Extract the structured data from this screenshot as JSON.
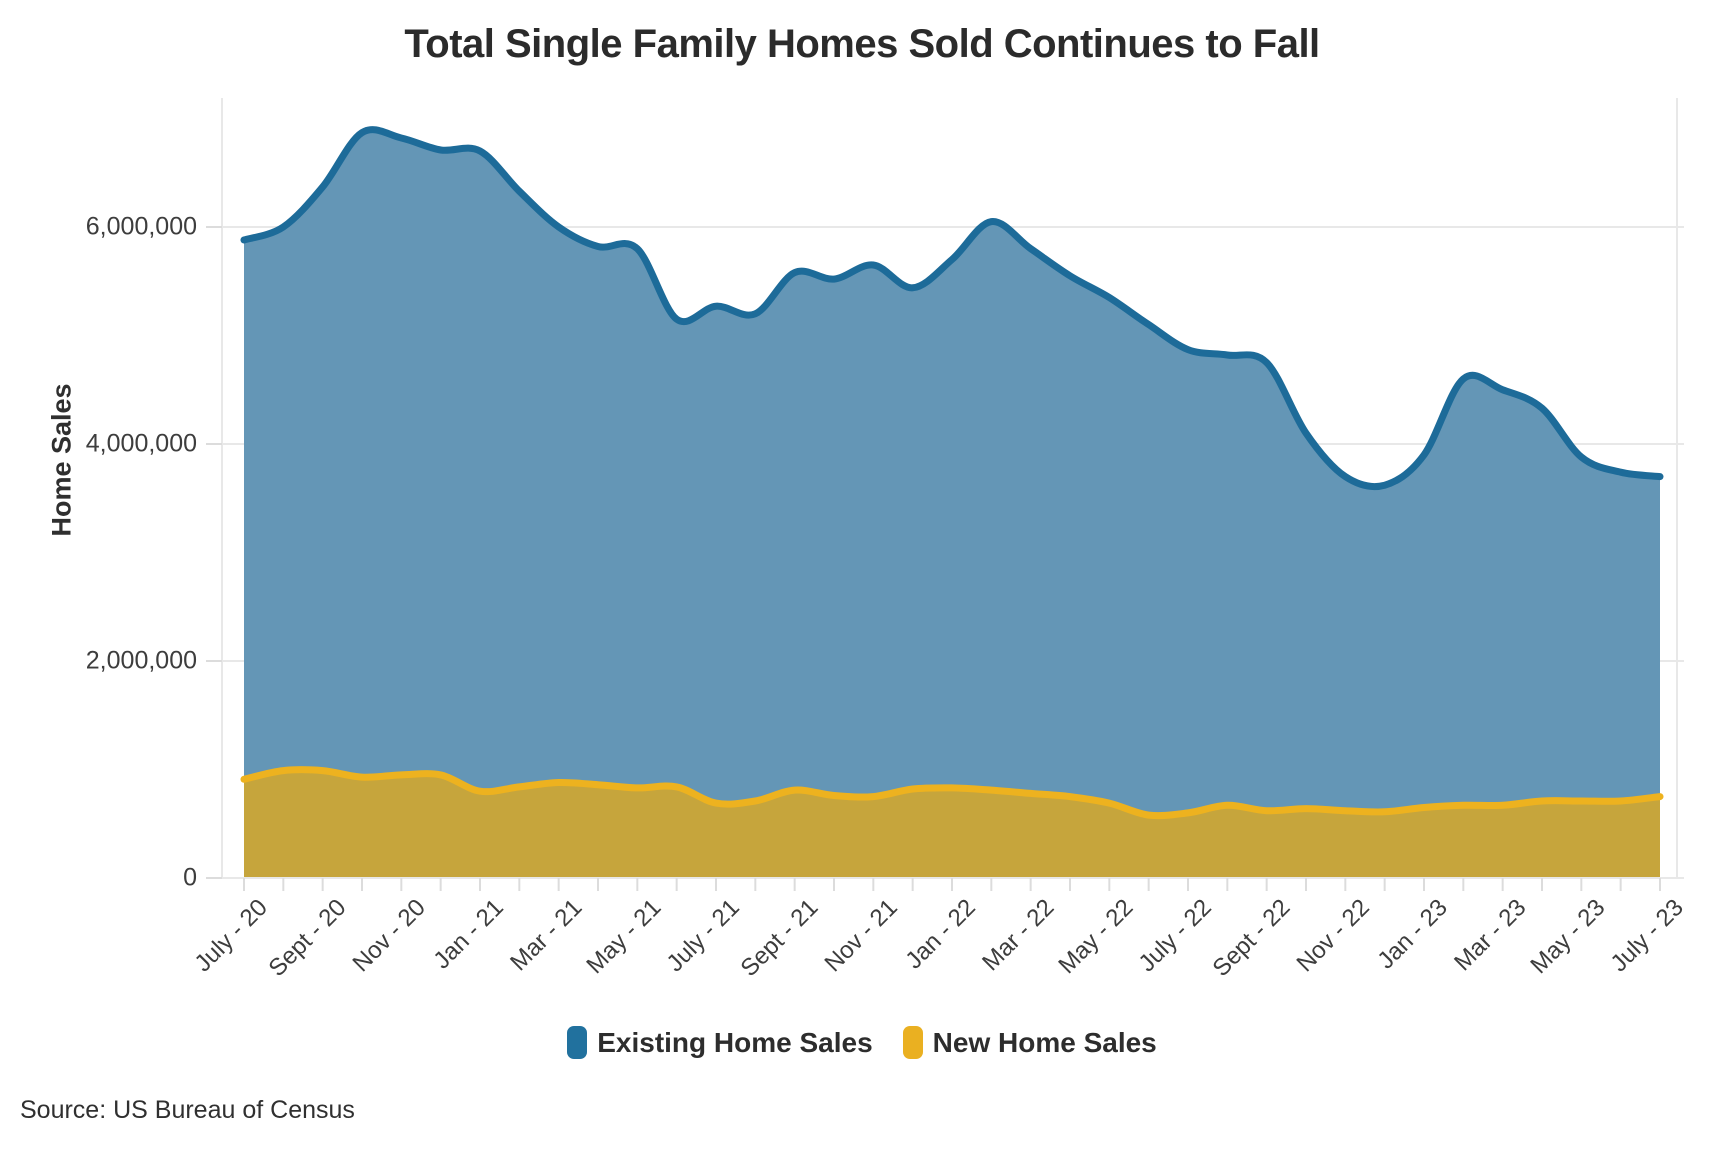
{
  "title": "Total Single Family Homes Sold Continues to Fall",
  "source": "Source: US Bureau of Census",
  "y_axis": {
    "label": "Home Sales",
    "ticks": [
      "0",
      "2,000,000",
      "4,000,000",
      "6,000,000"
    ],
    "tick_values": [
      0,
      2000000,
      4000000,
      6000000
    ]
  },
  "x_axis": {
    "tick_labels": [
      "July - 20",
      "Sept - 20",
      "Nov - 20",
      "Jan - 21",
      "Mar - 21",
      "May - 21",
      "July - 21",
      "Sept - 21",
      "Nov - 21",
      "Jan - 22",
      "Mar - 22",
      "May - 22",
      "July - 22",
      "Sept - 22",
      "Nov - 22",
      "Jan - 23",
      "Mar - 23",
      "May - 23",
      "July - 23"
    ]
  },
  "legend": [
    {
      "label": "Existing Home Sales",
      "color": "#21719e"
    },
    {
      "label": "New Home Sales",
      "color": "#eab021"
    }
  ],
  "colors": {
    "existing_fill": "#6496b6",
    "existing_stroke": "#1d6b99",
    "new_fill": "#c6a53c",
    "new_stroke": "#edb21f",
    "gridline": "#e8e8e8",
    "tick": "#dcdcdc"
  },
  "chart_data": {
    "type": "area",
    "stacked": true,
    "title": "Total Single Family Homes Sold Continues to Fall",
    "ylabel": "Home Sales",
    "ylim": [
      0,
      7000000
    ],
    "grid": "horizontal",
    "legend_position": "bottom",
    "x": [
      "Jul-20",
      "Aug-20",
      "Sep-20",
      "Oct-20",
      "Nov-20",
      "Dec-20",
      "Jan-21",
      "Feb-21",
      "Mar-21",
      "Apr-21",
      "May-21",
      "Jun-21",
      "Jul-21",
      "Aug-21",
      "Sep-21",
      "Oct-21",
      "Nov-21",
      "Dec-21",
      "Jan-22",
      "Feb-22",
      "Mar-22",
      "Apr-22",
      "May-22",
      "Jun-22",
      "Jul-22",
      "Aug-22",
      "Sep-22",
      "Oct-22",
      "Nov-22",
      "Dec-22",
      "Jan-23",
      "Feb-23",
      "Mar-23",
      "Apr-23",
      "May-23",
      "Jun-23",
      "Jul-23"
    ],
    "series": [
      {
        "name": "Existing Home Sales",
        "values": [
          4970000,
          5010000,
          5380000,
          5940000,
          5870000,
          5760000,
          5900000,
          5490000,
          5120000,
          4960000,
          4970000,
          4310000,
          4580000,
          4490000,
          4770000,
          4760000,
          4900000,
          4620000,
          4870000,
          5240000,
          5020000,
          4800000,
          4660000,
          4520000,
          4270000,
          4150000,
          4130000,
          3460000,
          3080000,
          3010000,
          3250000,
          3930000,
          3830000,
          3620000,
          3170000,
          3030000,
          2950000
        ]
      },
      {
        "name": "New Home Sales",
        "values": [
          910000,
          990000,
          990000,
          930000,
          950000,
          950000,
          800000,
          840000,
          880000,
          860000,
          830000,
          840000,
          690000,
          710000,
          810000,
          760000,
          750000,
          820000,
          830000,
          810000,
          780000,
          750000,
          690000,
          580000,
          600000,
          670000,
          620000,
          640000,
          620000,
          610000,
          650000,
          670000,
          670000,
          710000,
          710000,
          710000,
          750000
        ]
      }
    ]
  }
}
